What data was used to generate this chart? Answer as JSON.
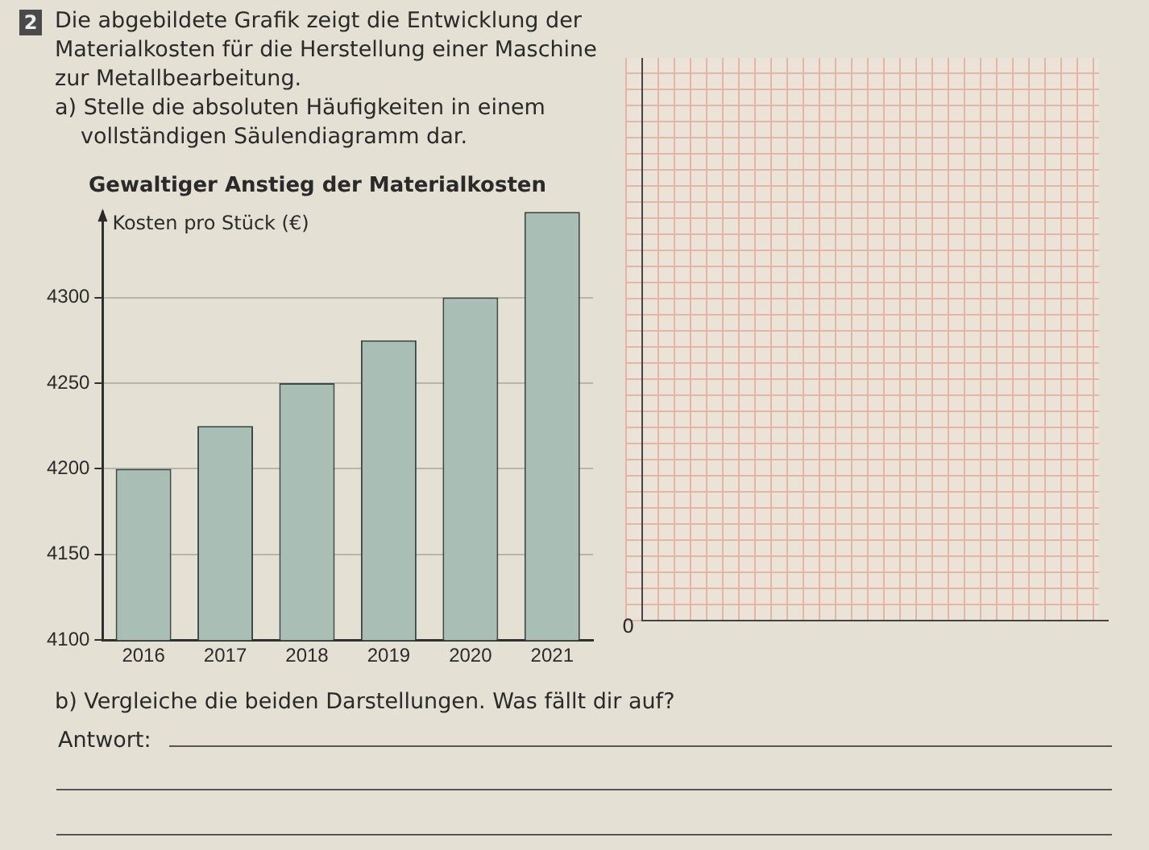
{
  "chart_data": {
    "type": "bar",
    "title": "Gewaltiger Anstieg der Materialkosten",
    "ylabel": "Kosten pro Stück (€)",
    "categories": [
      "2016",
      "2017",
      "2018",
      "2019",
      "2020",
      "2021"
    ],
    "values": [
      4200,
      4225,
      4250,
      4275,
      4300,
      4350
    ],
    "color": "#a9bfb5",
    "ylim": [
      4100,
      4350
    ],
    "yticks": [
      4100,
      4150,
      4200,
      4250,
      4300
    ],
    "grid": "y",
    "legend": false,
    "annotations": [
      "2",
      "Die abgebildete Grafik zeigt die Entwicklung der Materialkosten für die Herstellung einer Maschine zur Metallbearbeitung.",
      "a) Stelle die absoluten Häufigkeiten in einem vollständigen Säulendiagramm dar.",
      "b) Vergleiche die beiden Darstellungen. Was fällt dir auf?",
      "Antwort:",
      "0"
    ]
  }
}
